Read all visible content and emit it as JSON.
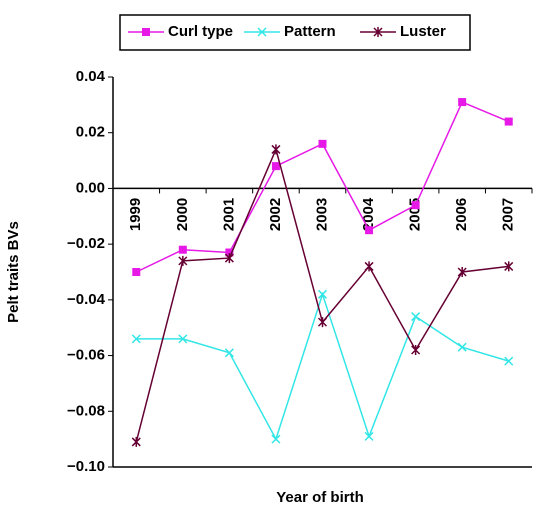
{
  "chart_data": {
    "type": "line",
    "x_label": "Year of birth",
    "y_label": "Pelt traits BVs",
    "categories": [
      "1999",
      "2000",
      "2001",
      "2002",
      "2003",
      "2004",
      "2005",
      "2006",
      "2007"
    ],
    "series": [
      {
        "name": "Curl type",
        "color": "#e619e6",
        "marker": "square",
        "values": [
          -0.03,
          -0.022,
          -0.023,
          0.008,
          0.016,
          -0.015,
          -0.006,
          0.031,
          0.024
        ]
      },
      {
        "name": "Pattern",
        "color": "#33e6e6",
        "marker": "x",
        "values": [
          -0.054,
          -0.054,
          -0.059,
          -0.09,
          -0.038,
          -0.089,
          -0.046,
          -0.057,
          -0.062
        ]
      },
      {
        "name": "Luster",
        "color": "#660033",
        "marker": "star",
        "values": [
          -0.091,
          -0.026,
          -0.025,
          0.014,
          -0.048,
          -0.028,
          -0.058,
          -0.03,
          -0.028
        ]
      }
    ],
    "ylim": [
      -0.1,
      0.04
    ],
    "yticks": [
      0.04,
      0.02,
      {
        "value": 0,
        "label": "0.00"
      },
      {
        "value": -0.02,
        "label": "−0.02"
      },
      {
        "value": -0.04,
        "label": "−0.04"
      },
      {
        "value": -0.06,
        "label": "−0.06"
      },
      {
        "value": -0.08,
        "label": "−0.08"
      },
      {
        "value": -0.1,
        "label": "−0.10"
      }
    ],
    "legend": "top"
  }
}
